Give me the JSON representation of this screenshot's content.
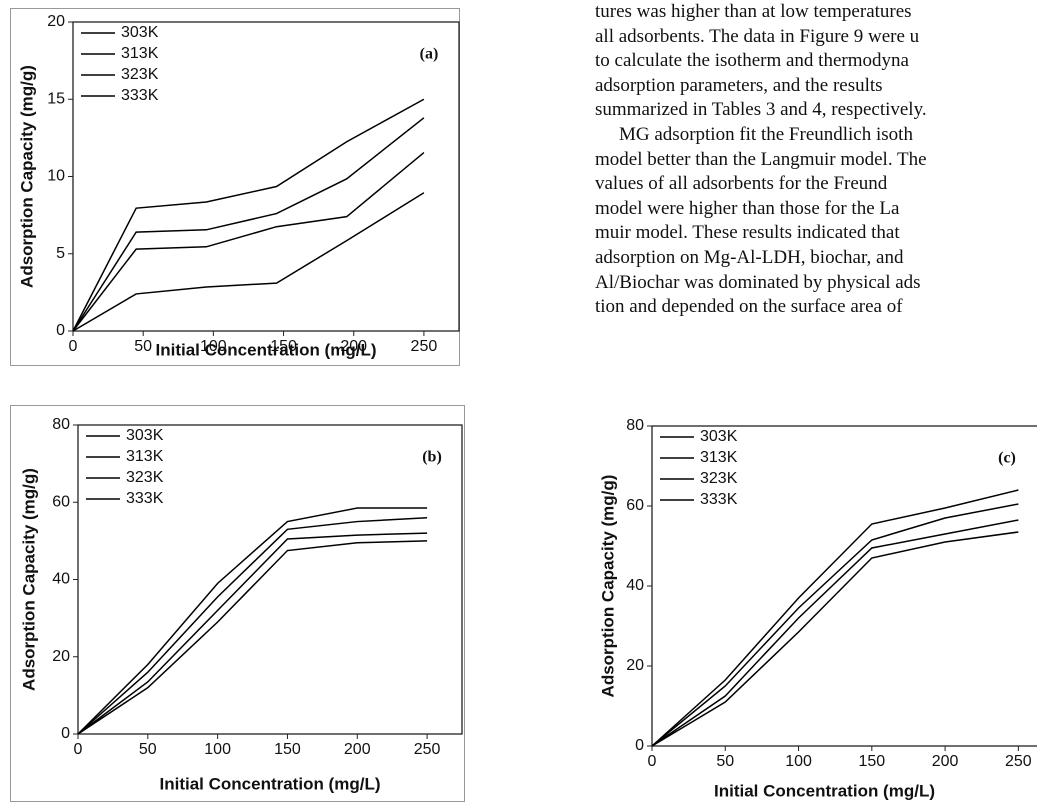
{
  "chart_data": [
    {
      "type": "line",
      "annotation": "(a)",
      "x_label": "Initial Concentration (mg/L)",
      "y_label": "Adsorption Capacity (mg/g)",
      "x": [
        0,
        45,
        95,
        145,
        195,
        250
      ],
      "xlim": [
        0,
        275
      ],
      "xticks": [
        0,
        50,
        100,
        150,
        200,
        250
      ],
      "ylim": [
        0,
        20
      ],
      "yticks": [
        0,
        5,
        10,
        15,
        20
      ],
      "series": [
        {
          "name": "303K",
          "color": "#000000",
          "marker": "square",
          "values": [
            0,
            2.4,
            2.85,
            3.1,
            5.85,
            8.95
          ]
        },
        {
          "name": "313K",
          "color": "#000000",
          "marker": "circle",
          "values": [
            0,
            5.3,
            5.45,
            6.75,
            7.4,
            11.55
          ]
        },
        {
          "name": "323K",
          "color": "#000000",
          "marker": "triangle",
          "values": [
            0,
            6.4,
            6.55,
            7.6,
            9.85,
            13.8
          ]
        },
        {
          "name": "333K",
          "color": "#000000",
          "marker": "diamond",
          "values": [
            0,
            7.95,
            8.35,
            9.35,
            12.25,
            15.0
          ]
        }
      ]
    },
    {
      "type": "line",
      "annotation": "(b)",
      "x_label": "Initial Concentration (mg/L)",
      "y_label": "Adsorption Capacity (mg/g)",
      "x": [
        0,
        50,
        100,
        150,
        200,
        250
      ],
      "xlim": [
        0,
        275
      ],
      "xticks": [
        0,
        50,
        100,
        150,
        200,
        250
      ],
      "ylim": [
        0,
        80
      ],
      "yticks": [
        0,
        20,
        40,
        60,
        80
      ],
      "series": [
        {
          "name": "303K",
          "color": "#000000",
          "marker": "square",
          "values": [
            0,
            12,
            29,
            47.5,
            49.5,
            50
          ]
        },
        {
          "name": "313K",
          "color": "#000000",
          "marker": "circle",
          "values": [
            0,
            13.5,
            32,
            50.5,
            51.5,
            52
          ]
        },
        {
          "name": "323K",
          "color": "#000000",
          "marker": "triangle",
          "values": [
            0,
            16,
            35.5,
            53,
            55,
            56
          ]
        },
        {
          "name": "333K",
          "color": "#000000",
          "marker": "diamond",
          "values": [
            0,
            18,
            39,
            55,
            58.5,
            58.5
          ]
        }
      ]
    },
    {
      "type": "line",
      "annotation": "(c)",
      "x_label": "Initial Concentration (mg/L)",
      "y_label": "Adsorption Capacity (mg/g)",
      "x": [
        0,
        50,
        100,
        150,
        200,
        250
      ],
      "xlim": [
        0,
        275
      ],
      "xticks": [
        0,
        50,
        100,
        150,
        200,
        250
      ],
      "ylim": [
        0,
        80
      ],
      "yticks": [
        0,
        20,
        40,
        60,
        80
      ],
      "series": [
        {
          "name": "303K",
          "color": "#000000",
          "marker": "square",
          "values": [
            0,
            11,
            28.5,
            47,
            51,
            53.5
          ]
        },
        {
          "name": "313K",
          "color": "#000000",
          "marker": "circle",
          "values": [
            0,
            12.5,
            32,
            49.5,
            53,
            56.5
          ]
        },
        {
          "name": "323K",
          "color": "#000000",
          "marker": "triangle",
          "values": [
            0,
            15,
            34.5,
            51.5,
            57,
            60.5
          ]
        },
        {
          "name": "333K",
          "color": "#000000",
          "marker": "diamond",
          "values": [
            0,
            16.5,
            37,
            55.5,
            59.5,
            64
          ]
        }
      ]
    }
  ],
  "body_text": {
    "lines": [
      "tures was higher than at low temperatures",
      "all adsorbents. The data in Figure 9 were u",
      "to calculate the isotherm and thermodyna",
      "adsorption parameters, and the results",
      "summarized in Tables 3 and 4, respectively.",
      "MG adsorption fit the Freundlich isoth",
      "model better than the Langmuir model. The",
      "values of all adsorbents for the Freund",
      "model were higher than those for the La",
      "muir model. These results indicated that",
      "adsorption on Mg-Al-LDH, biochar, and",
      "Al/Biochar was dominated by physical ads",
      "tion and depended on the surface area of"
    ]
  }
}
